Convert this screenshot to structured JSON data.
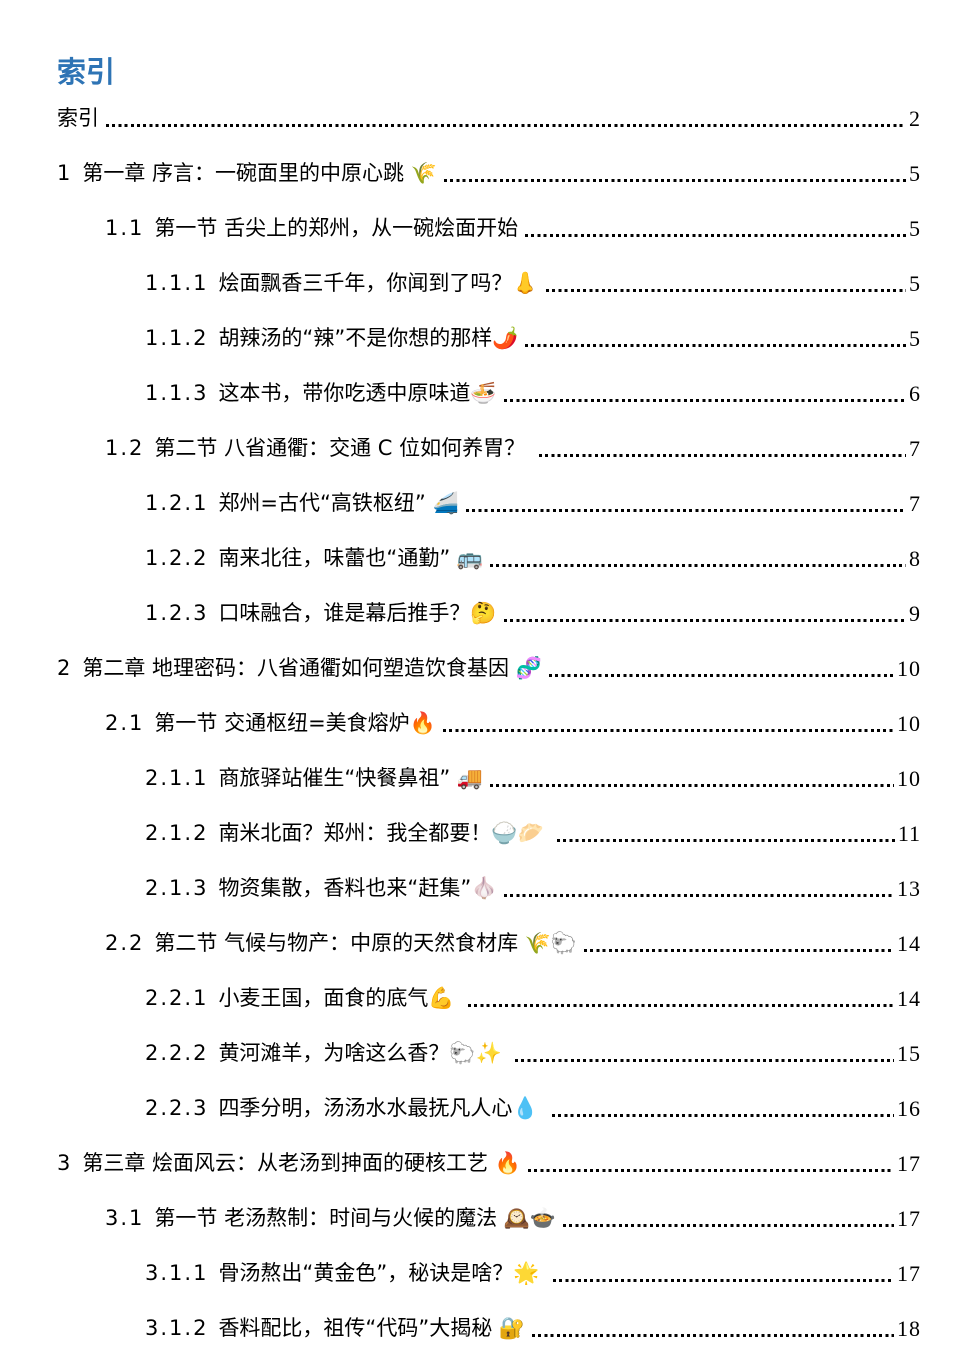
{
  "header": {
    "title": "索引",
    "title_color": "#2E74B5"
  },
  "toc": {
    "entries": [
      {
        "level": 1,
        "num": "",
        "title": "索引",
        "page": "2"
      },
      {
        "level": 1,
        "num": "1",
        "title": "第一章 序言：一碗面里的中原心跳 🌾",
        "page": "5"
      },
      {
        "level": 2,
        "num": "1.1",
        "title": "第一节 舌尖上的郑州，从一碗烩面开始",
        "page": "5"
      },
      {
        "level": 3,
        "num": "1.1.1",
        "title": "烩面飘香三千年，你闻到了吗？👃",
        "page": "5"
      },
      {
        "level": 3,
        "num": "1.1.2",
        "title": "胡辣汤的“辣”不是你想的那样🌶️",
        "page": "5"
      },
      {
        "level": 3,
        "num": "1.1.3",
        "title": "这本书，带你吃透中原味道🍜",
        "page": "6"
      },
      {
        "level": 2,
        "num": "1.2",
        "title": "第二节 八省通衢：交通 C 位如何养胃？ ",
        "page": "7"
      },
      {
        "level": 3,
        "num": "1.2.1",
        "title": "郑州=古代“高铁枢纽” 🚄",
        "page": "7"
      },
      {
        "level": 3,
        "num": "1.2.2",
        "title": "南来北往，味蕾也“通勤” 🚌",
        "page": "8"
      },
      {
        "level": 3,
        "num": "1.2.3",
        "title": "口味融合，谁是幕后推手？🤔",
        "page": "9"
      },
      {
        "level": 1,
        "num": "2",
        "title": "第二章 地理密码：八省通衢如何塑造饮食基因 🧬",
        "page": "10"
      },
      {
        "level": 2,
        "num": "2.1",
        "title": "第一节 交通枢纽=美食熔炉🔥",
        "page": "10"
      },
      {
        "level": 3,
        "num": "2.1.1",
        "title": "商旅驿站催生“快餐鼻祖” 🚚",
        "page": "10"
      },
      {
        "level": 3,
        "num": "2.1.2",
        "title": "南米北面？郑州：我全都要！🍚🥟 ",
        "page": "11"
      },
      {
        "level": 3,
        "num": "2.1.3",
        "title": "物资集散，香料也来“赶集”🧄",
        "page": "13"
      },
      {
        "level": 2,
        "num": "2.2",
        "title": "第二节 气候与物产：中原的天然食材库 🌾🐑",
        "page": "14"
      },
      {
        "level": 3,
        "num": "2.2.1",
        "title": "小麦王国，面食的底气💪 ",
        "page": "14"
      },
      {
        "level": 3,
        "num": "2.2.2",
        "title": "黄河滩羊，为啥这么香？🐑✨ ",
        "page": "15"
      },
      {
        "level": 3,
        "num": "2.2.3",
        "title": "四季分明，汤汤水水最抚凡人心💧 ",
        "page": "16"
      },
      {
        "level": 1,
        "num": "3",
        "title": "第三章 烩面风云：从老汤到抻面的硬核工艺 🔥",
        "page": "17"
      },
      {
        "level": 2,
        "num": "3.1",
        "title": "第一节 老汤熬制：时间与火候的魔法 🕰️🍲",
        "page": "17"
      },
      {
        "level": 3,
        "num": "3.1.1",
        "title": "骨汤熬出“黄金色”，秘诀是啥？🌟 ",
        "page": "17"
      },
      {
        "level": 3,
        "num": "3.1.2",
        "title": "香料配比，祖传“代码”大揭秘 🔐",
        "page": "18"
      }
    ]
  }
}
